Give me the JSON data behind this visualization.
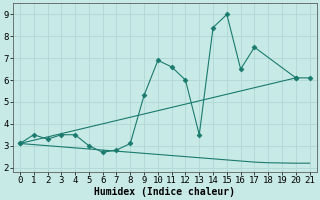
{
  "line1_x": [
    0,
    1,
    2,
    3,
    4,
    5,
    6,
    7,
    8,
    9,
    10,
    11,
    12,
    13,
    14,
    15,
    16,
    17,
    20,
    21
  ],
  "line1_y": [
    3.1,
    3.5,
    3.3,
    3.5,
    3.5,
    3.0,
    2.7,
    2.8,
    3.1,
    5.3,
    6.9,
    6.6,
    6.0,
    3.5,
    8.4,
    9.0,
    6.5,
    7.5,
    6.1,
    6.1
  ],
  "line2_x": [
    0,
    20
  ],
  "line2_y": [
    3.1,
    6.1
  ],
  "line3_x": [
    0,
    1,
    2,
    3,
    4,
    5,
    6,
    7,
    8,
    9,
    10,
    11,
    12,
    13,
    14,
    15,
    16,
    17,
    18,
    19,
    20,
    21
  ],
  "line3_y": [
    3.1,
    3.05,
    3.0,
    2.95,
    2.9,
    2.85,
    2.8,
    2.75,
    2.7,
    2.65,
    2.6,
    2.55,
    2.5,
    2.45,
    2.4,
    2.35,
    2.3,
    2.25,
    2.22,
    2.21,
    2.2,
    2.2
  ],
  "line_color": "#1a7a6e",
  "marker": "D",
  "marker_size": 2.5,
  "bg_color": "#c8eae6",
  "grid_color": "#b0d8d4",
  "xlabel": "Humidex (Indice chaleur)",
  "xlim": [
    -0.5,
    21.5
  ],
  "ylim": [
    1.8,
    9.5
  ],
  "xticks": [
    0,
    1,
    2,
    3,
    4,
    5,
    6,
    7,
    8,
    9,
    10,
    11,
    12,
    13,
    14,
    15,
    16,
    17,
    18,
    19,
    20,
    21
  ],
  "yticks": [
    2,
    3,
    4,
    5,
    6,
    7,
    8,
    9
  ],
  "xlabel_fontsize": 7,
  "tick_fontsize": 6.5
}
